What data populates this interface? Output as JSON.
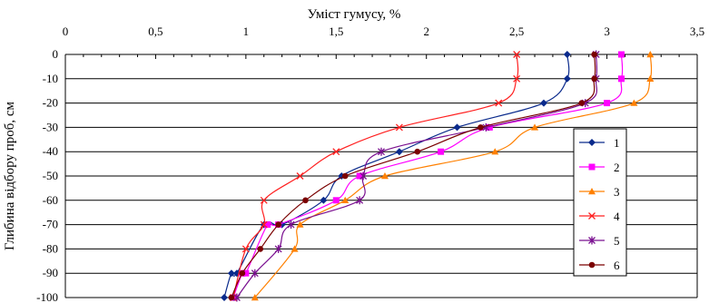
{
  "chart_data": {
    "type": "line",
    "title": "",
    "xlabel": "Уміст гумусу, %",
    "ylabel": "Глибина відбору проб, см",
    "xlim": [
      0,
      3.5
    ],
    "ylim": [
      -100,
      0
    ],
    "x_axis_position": "top",
    "x_ticks": [
      {
        "v": 0,
        "label": "0"
      },
      {
        "v": 0.5,
        "label": "0,5"
      },
      {
        "v": 1,
        "label": "1"
      },
      {
        "v": 1.5,
        "label": "1,5"
      },
      {
        "v": 2,
        "label": "2"
      },
      {
        "v": 2.5,
        "label": "2,5"
      },
      {
        "v": 3,
        "label": "3"
      },
      {
        "v": 3.5,
        "label": "3,5"
      }
    ],
    "y_ticks": [
      0,
      -10,
      -20,
      -30,
      -40,
      -50,
      -60,
      -70,
      -80,
      -90,
      -100
    ],
    "grid": "horizontal",
    "legend_position": "right",
    "series": [
      {
        "name": "1",
        "color": "#0a2a8c",
        "marker": "diamond",
        "x": [
          2.78,
          2.78,
          2.65,
          2.17,
          1.85,
          1.53,
          1.43,
          1.2,
          1.1,
          0.95,
          0.92,
          0.88
        ],
        "y": [
          0,
          -10,
          -20,
          -30,
          -40,
          -50,
          -60,
          -70,
          -70,
          -90,
          -90,
          -100
        ]
      },
      {
        "name": "2",
        "color": "#ff00ff",
        "marker": "square",
        "x": [
          3.08,
          3.08,
          3.0,
          2.35,
          2.08,
          1.63,
          1.5,
          1.18,
          1.12,
          1.0,
          0.98,
          0.93
        ],
        "y": [
          0,
          -10,
          -20,
          -30,
          -40,
          -50,
          -60,
          -70,
          -70,
          -90,
          -90,
          -100
        ]
      },
      {
        "name": "3",
        "color": "#ff8000",
        "marker": "triangle",
        "x": [
          3.24,
          3.24,
          3.15,
          2.6,
          2.38,
          1.77,
          1.55,
          1.3,
          1.27,
          1.05
        ],
        "y": [
          0,
          -10,
          -20,
          -30,
          -40,
          -50,
          -60,
          -70,
          -80,
          -100
        ]
      },
      {
        "name": "4",
        "color": "#ff2020",
        "marker": "x",
        "x": [
          2.5,
          2.5,
          2.4,
          1.85,
          1.5,
          1.3,
          1.1,
          1.1,
          1.0,
          0.93
        ],
        "y": [
          0,
          -10,
          -20,
          -30,
          -40,
          -50,
          -60,
          -70,
          -80,
          -100
        ]
      },
      {
        "name": "5",
        "color": "#7a1090",
        "marker": "star",
        "x": [
          2.94,
          2.94,
          2.88,
          2.33,
          1.75,
          1.65,
          1.63,
          1.25,
          1.18,
          1.05,
          0.95
        ],
        "y": [
          0,
          -10,
          -20,
          -30,
          -40,
          -50,
          -60,
          -70,
          -80,
          -90,
          -100
        ]
      },
      {
        "name": "6",
        "color": "#7a0000",
        "marker": "circle",
        "x": [
          2.93,
          2.93,
          2.86,
          2.3,
          1.95,
          1.55,
          1.33,
          1.18,
          1.08,
          0.98,
          0.92
        ],
        "y": [
          0,
          -10,
          -20,
          -30,
          -40,
          -50,
          -60,
          -70,
          -80,
          -90,
          -100
        ]
      }
    ]
  }
}
